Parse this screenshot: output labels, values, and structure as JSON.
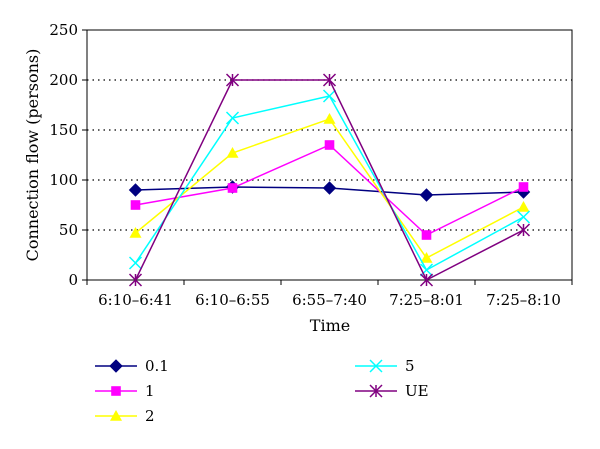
{
  "chart_data": {
    "type": "line",
    "title": "",
    "xlabel": "Time",
    "ylabel": "Connection flow (persons)",
    "ylim": [
      0,
      250
    ],
    "yticks": [
      0,
      50,
      100,
      150,
      200,
      250
    ],
    "grid": "horizontal-dotted",
    "legend_position": "bottom",
    "categories": [
      "6:10–6:41",
      "6:10–6:55",
      "6:55–7:40",
      "7:25–8:01",
      "7:25–8:10"
    ],
    "series": [
      {
        "name": "0.1",
        "color": "#000080",
        "marker": "diamond",
        "values": [
          90,
          93,
          92,
          85,
          88
        ]
      },
      {
        "name": "1",
        "color": "#ff00ff",
        "marker": "square",
        "values": [
          75,
          92,
          135,
          45,
          93
        ]
      },
      {
        "name": "2",
        "color": "#ffff00",
        "marker": "triangle",
        "values": [
          47,
          127,
          161,
          22,
          73
        ]
      },
      {
        "name": "5",
        "color": "#00ffff",
        "marker": "x",
        "values": [
          17,
          162,
          184,
          10,
          63
        ]
      },
      {
        "name": "UE",
        "color": "#800080",
        "marker": "asterisk",
        "values": [
          0,
          200,
          200,
          0,
          50
        ]
      }
    ]
  }
}
